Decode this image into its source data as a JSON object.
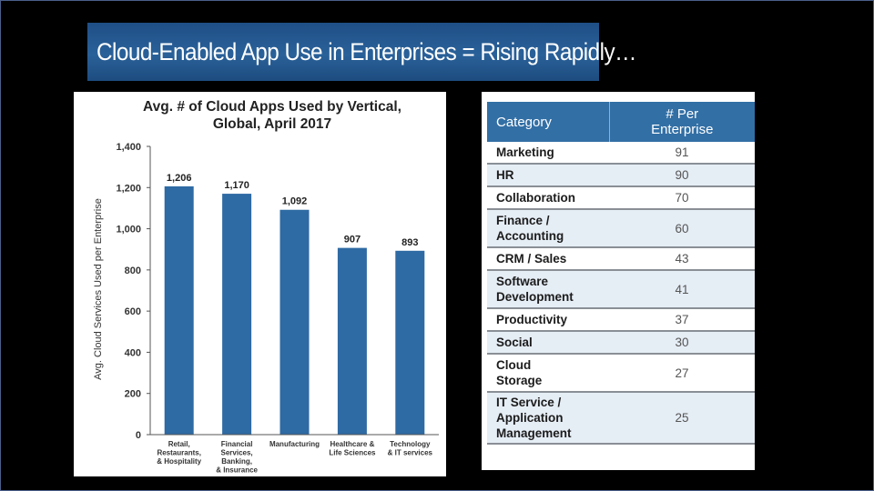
{
  "slide": {
    "title": "Cloud-Enabled App Use in Enterprises = Rising Rapidly…"
  },
  "chart_data": {
    "type": "bar",
    "title_line1": "Avg. # of Cloud Apps Used by Vertical,",
    "title_line2": "Global, April 2017",
    "ylabel": "Avg. Cloud Services Used per Enterprise",
    "xlabel": "",
    "ylim": [
      0,
      1400
    ],
    "yticks": [
      "0",
      "200",
      "400",
      "600",
      "800",
      "1,000",
      "1,200",
      "1,400"
    ],
    "grid": false,
    "bar_color": "#2e6aa3",
    "categories": [
      [
        "Retail,",
        "Restaurants,",
        "& Hospitality"
      ],
      [
        "Financial",
        "Services,",
        "Banking,",
        "& Insurance"
      ],
      [
        "Manufacturing"
      ],
      [
        "Healthcare &",
        "Life Sciences"
      ],
      [
        "Technology",
        "& IT services"
      ]
    ],
    "values": [
      1206,
      1170,
      1092,
      907,
      893
    ],
    "value_labels": [
      "1,206",
      "1,170",
      "1,092",
      "907",
      "893"
    ]
  },
  "table": {
    "header_category": "Category",
    "header_count_line1": "# Per",
    "header_count_line2": "Enterprise",
    "header_color": "#326fa5",
    "rows": [
      {
        "category": [
          "Marketing"
        ],
        "count": "91"
      },
      {
        "category": [
          "HR"
        ],
        "count": "90"
      },
      {
        "category": [
          "Collaboration"
        ],
        "count": "70"
      },
      {
        "category": [
          "Finance /",
          "Accounting"
        ],
        "count": "60"
      },
      {
        "category": [
          "CRM / Sales"
        ],
        "count": "43"
      },
      {
        "category": [
          "Software",
          "Development"
        ],
        "count": "41"
      },
      {
        "category": [
          "Productivity"
        ],
        "count": "37"
      },
      {
        "category": [
          "Social"
        ],
        "count": "30"
      },
      {
        "category": [
          "Cloud",
          "Storage"
        ],
        "count": "27"
      },
      {
        "category": [
          "IT Service /",
          "Application",
          "Management"
        ],
        "count": "25"
      }
    ]
  }
}
